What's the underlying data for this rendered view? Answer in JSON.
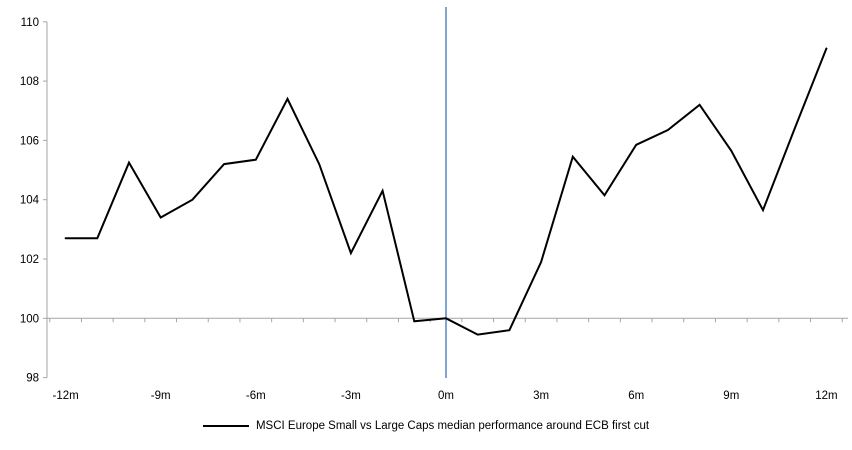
{
  "chart_data": {
    "type": "line",
    "title": "",
    "xlabel": "",
    "ylabel": "",
    "x": [
      -12,
      -11,
      -10,
      -9,
      -8,
      -7,
      -6,
      -5,
      -4,
      -3,
      -2,
      -1,
      0,
      1,
      2,
      3,
      4,
      5,
      6,
      7,
      8,
      9,
      10,
      11,
      12
    ],
    "series": [
      {
        "name": "MSCI Europe Small vs Large Caps median performance around ECB first cut",
        "values": [
          102.7,
          102.7,
          105.25,
          103.4,
          104.0,
          105.2,
          105.35,
          107.4,
          105.2,
          102.2,
          104.3,
          99.9,
          100.0,
          99.45,
          99.6,
          101.9,
          105.45,
          104.15,
          105.85,
          106.35,
          107.2,
          105.65,
          103.65,
          106.4,
          109.1
        ]
      }
    ],
    "ylim": [
      98,
      110
    ],
    "y_ticks": [
      98,
      100,
      102,
      104,
      106,
      108,
      110
    ],
    "x_tick_label_values": [
      -12,
      -9,
      -6,
      -3,
      0,
      3,
      6,
      9,
      12
    ],
    "x_tick_label_texts": [
      "-12m",
      "-9m",
      "-6m",
      "-3m",
      "0m",
      "3m",
      "6m",
      "9m",
      "12m"
    ],
    "baseline_value": 100,
    "event_line_x": 0,
    "grid": "off",
    "legend_position": "bottom",
    "colors": {
      "series": "#000000",
      "axis": "#a6a6a6",
      "baseline": "#a6a6a6",
      "event_line": "#7da7cf",
      "text": "#000000"
    }
  },
  "legend": {
    "label": "MSCI Europe Small vs Large Caps median performance around ECB first cut"
  }
}
